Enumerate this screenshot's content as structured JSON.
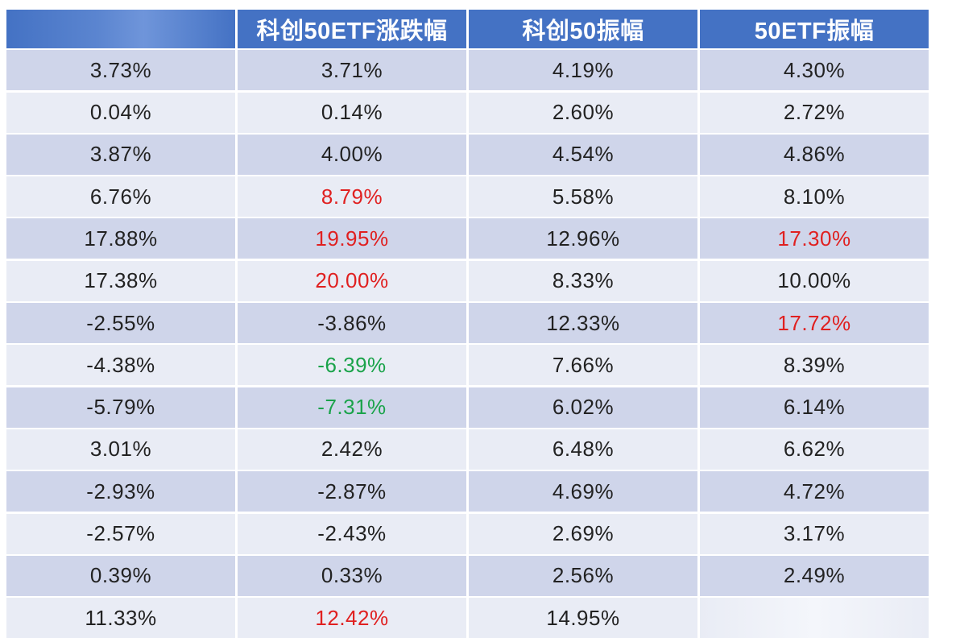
{
  "table": {
    "headers": [
      "",
      "科创50ETF涨跌幅",
      "科创50振幅",
      "50ETF振幅"
    ],
    "rows": [
      {
        "cells": [
          "3.73%",
          "3.71%",
          "4.19%",
          "4.30%"
        ],
        "colors": [
          "",
          "",
          "",
          ""
        ]
      },
      {
        "cells": [
          "0.04%",
          "0.14%",
          "2.60%",
          "2.72%"
        ],
        "colors": [
          "",
          "",
          "",
          ""
        ]
      },
      {
        "cells": [
          "3.87%",
          "4.00%",
          "4.54%",
          "4.86%"
        ],
        "colors": [
          "",
          "",
          "",
          ""
        ]
      },
      {
        "cells": [
          "6.76%",
          "8.79%",
          "5.58%",
          "8.10%"
        ],
        "colors": [
          "",
          "red",
          "",
          ""
        ]
      },
      {
        "cells": [
          "17.88%",
          "19.95%",
          "12.96%",
          "17.30%"
        ],
        "colors": [
          "",
          "red",
          "",
          "red"
        ]
      },
      {
        "cells": [
          "17.38%",
          "20.00%",
          "8.33%",
          "10.00%"
        ],
        "colors": [
          "",
          "red",
          "",
          ""
        ]
      },
      {
        "cells": [
          "-2.55%",
          "-3.86%",
          "12.33%",
          "17.72%"
        ],
        "colors": [
          "",
          "",
          "",
          "red"
        ]
      },
      {
        "cells": [
          "-4.38%",
          "-6.39%",
          "7.66%",
          "8.39%"
        ],
        "colors": [
          "",
          "green",
          "",
          ""
        ]
      },
      {
        "cells": [
          "-5.79%",
          "-7.31%",
          "6.02%",
          "6.14%"
        ],
        "colors": [
          "",
          "green",
          "",
          ""
        ]
      },
      {
        "cells": [
          "3.01%",
          "2.42%",
          "6.48%",
          "6.62%"
        ],
        "colors": [
          "",
          "",
          "",
          ""
        ]
      },
      {
        "cells": [
          "-2.93%",
          "-2.87%",
          "4.69%",
          "4.72%"
        ],
        "colors": [
          "",
          "",
          "",
          ""
        ]
      },
      {
        "cells": [
          "-2.57%",
          "-2.43%",
          "2.69%",
          "3.17%"
        ],
        "colors": [
          "",
          "",
          "",
          ""
        ]
      },
      {
        "cells": [
          "0.39%",
          "0.33%",
          "2.56%",
          "2.49%"
        ],
        "colors": [
          "",
          "",
          "",
          ""
        ]
      },
      {
        "cells": [
          "11.33%",
          "12.42%",
          "14.95%",
          ""
        ],
        "colors": [
          "",
          "red",
          "",
          ""
        ]
      }
    ]
  },
  "colors": {
    "header_bg": "#4472c4",
    "row_odd_bg": "#cfd5ea",
    "row_even_bg": "#e9ecf5",
    "positive_highlight": "#e02020",
    "negative_highlight": "#1aa34a"
  }
}
